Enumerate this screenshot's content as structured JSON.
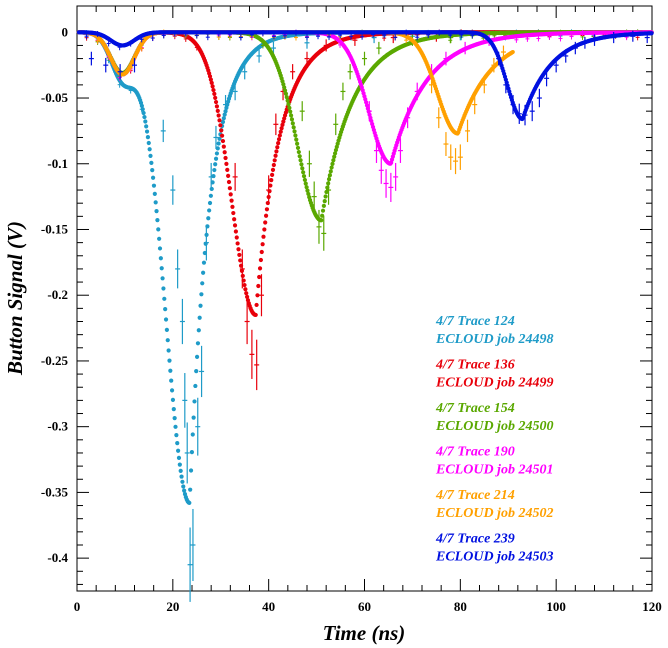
{
  "chart_data": {
    "type": "scatter",
    "xlabel": "Time (ns)",
    "ylabel": "Button Signal (V)",
    "xlim": [
      0,
      120
    ],
    "ylim": [
      -0.425,
      0.02
    ],
    "x_ticks": [
      0,
      20,
      40,
      60,
      80,
      100,
      120
    ],
    "y_ticks": [
      0,
      -0.05,
      -0.1,
      -0.15,
      -0.2,
      -0.25,
      -0.3,
      -0.35,
      -0.4
    ],
    "y_tick_labels": [
      "0",
      "-0.05",
      "-0.1",
      "-0.15",
      "-0.2",
      "-0.25",
      "-0.3",
      "-0.35",
      "-0.4"
    ],
    "legend_position": "bottom-right",
    "series": [
      {
        "trace": "4/7 Trace 124",
        "sim": "ECLOUD job 24498",
        "color": "#1e9bc8",
        "first_dip": -0.033,
        "main_t": 23.5,
        "main_min": -0.358,
        "sim_rise": 7.0,
        "sim_fall": 4.2,
        "sim_end": 120,
        "data_points": [
          [
            18,
            -0.075
          ],
          [
            20,
            -0.12
          ],
          [
            21,
            -0.18
          ],
          [
            22,
            -0.22
          ],
          [
            22.5,
            -0.28
          ],
          [
            23,
            -0.32
          ],
          [
            23.6,
            -0.405
          ],
          [
            24.2,
            -0.39
          ],
          [
            25.2,
            -0.3
          ],
          [
            26,
            -0.258
          ],
          [
            27,
            -0.16
          ],
          [
            28,
            -0.11
          ],
          [
            29,
            -0.08
          ],
          [
            31,
            -0.055
          ],
          [
            33,
            -0.045
          ],
          [
            35,
            -0.03
          ],
          [
            38,
            -0.018
          ],
          [
            41,
            -0.012
          ],
          [
            48,
            -0.008
          ],
          [
            55,
            -0.005
          ],
          [
            62,
            -0.004
          ],
          [
            70,
            -0.003
          ],
          [
            80,
            -0.002
          ]
        ]
      },
      {
        "trace": "4/7 Trace 136",
        "sim": "ECLOUD job 24499",
        "color": "#e8000b",
        "first_dip": -0.032,
        "main_t": 37.3,
        "main_min": -0.215,
        "sim_rise": 7.0,
        "sim_fall": 5.0,
        "sim_end": 120,
        "data_points": [
          [
            33,
            -0.11
          ],
          [
            34.5,
            -0.18
          ],
          [
            35.5,
            -0.22
          ],
          [
            36.5,
            -0.245
          ],
          [
            37.5,
            -0.253
          ],
          [
            38.5,
            -0.2
          ],
          [
            40,
            -0.12
          ],
          [
            41.5,
            -0.07
          ],
          [
            43,
            -0.045
          ],
          [
            45,
            -0.03
          ],
          [
            48,
            -0.02
          ],
          [
            52,
            -0.01
          ],
          [
            58,
            -0.006
          ],
          [
            66,
            -0.004
          ],
          [
            75,
            -0.003
          ]
        ]
      },
      {
        "trace": "4/7 Trace 154",
        "sim": "ECLOUD job 24500",
        "color": "#5aa800",
        "first_dip": -0.031,
        "main_t": 51.0,
        "main_min": -0.143,
        "sim_rise": 7.0,
        "sim_fall": 6.5,
        "sim_end": 120,
        "data_points": [
          [
            47,
            -0.06
          ],
          [
            48.5,
            -0.1
          ],
          [
            49.5,
            -0.125
          ],
          [
            50.5,
            -0.148
          ],
          [
            51.5,
            -0.153
          ],
          [
            52.5,
            -0.12
          ],
          [
            54,
            -0.07
          ],
          [
            55.5,
            -0.045
          ],
          [
            57,
            -0.03
          ],
          [
            60,
            -0.02
          ],
          [
            63,
            -0.012
          ],
          [
            70,
            -0.006
          ],
          [
            78,
            -0.004
          ]
        ]
      },
      {
        "trace": "4/7 Trace 190",
        "sim": "ECLOUD job 24501",
        "color": "#ff00ff",
        "first_dip": -0.032,
        "main_t": 65.5,
        "main_min": -0.1,
        "sim_rise": 6.5,
        "sim_fall": 7.5,
        "sim_end": 120,
        "data_points": [
          [
            61,
            -0.06
          ],
          [
            62.5,
            -0.09
          ],
          [
            63.5,
            -0.105
          ],
          [
            64.5,
            -0.115
          ],
          [
            65.5,
            -0.118
          ],
          [
            66.5,
            -0.11
          ],
          [
            67.5,
            -0.09
          ],
          [
            69,
            -0.065
          ],
          [
            71,
            -0.045
          ],
          [
            74,
            -0.03
          ],
          [
            77,
            -0.02
          ],
          [
            81,
            -0.012
          ],
          [
            86,
            -0.006
          ]
        ]
      },
      {
        "trace": "4/7 Trace 214",
        "sim": "ECLOUD job 24502",
        "color": "#ffa000",
        "first_dip": -0.032,
        "main_t": 79.5,
        "main_min": -0.077,
        "sim_rise": 6.0,
        "sim_fall": 7.0,
        "sim_end": 91,
        "data_points": [
          [
            74,
            -0.04
          ],
          [
            75.5,
            -0.065
          ],
          [
            77,
            -0.085
          ],
          [
            78,
            -0.095
          ],
          [
            79,
            -0.098
          ],
          [
            80,
            -0.095
          ],
          [
            81.5,
            -0.075
          ],
          [
            83,
            -0.055
          ],
          [
            85,
            -0.04
          ],
          [
            87,
            -0.025
          ],
          [
            89,
            -0.015
          ]
        ]
      },
      {
        "trace": "4/7 Trace 239",
        "sim": "ECLOUD job 24503",
        "color": "#0010e0",
        "first_dip": -0.01,
        "main_t": 93.0,
        "main_min": -0.066,
        "sim_rise": 4.5,
        "sim_fall": 6.0,
        "sim_end": 120,
        "data_points": [
          [
            3,
            -0.02
          ],
          [
            6,
            -0.025
          ],
          [
            9,
            -0.03
          ],
          [
            12,
            -0.025
          ],
          [
            88,
            -0.02
          ],
          [
            89.5,
            -0.04
          ],
          [
            91,
            -0.055
          ],
          [
            92.3,
            -0.062
          ],
          [
            93.5,
            -0.063
          ],
          [
            95,
            -0.06
          ],
          [
            96.5,
            -0.05
          ],
          [
            98,
            -0.035
          ],
          [
            100,
            -0.025
          ],
          [
            102,
            -0.018
          ],
          [
            104,
            -0.012
          ],
          [
            106,
            -0.008
          ],
          [
            108,
            -0.006
          ],
          [
            112,
            -0.004
          ],
          [
            116,
            -0.003
          ],
          [
            119,
            -0.004
          ]
        ]
      }
    ]
  }
}
